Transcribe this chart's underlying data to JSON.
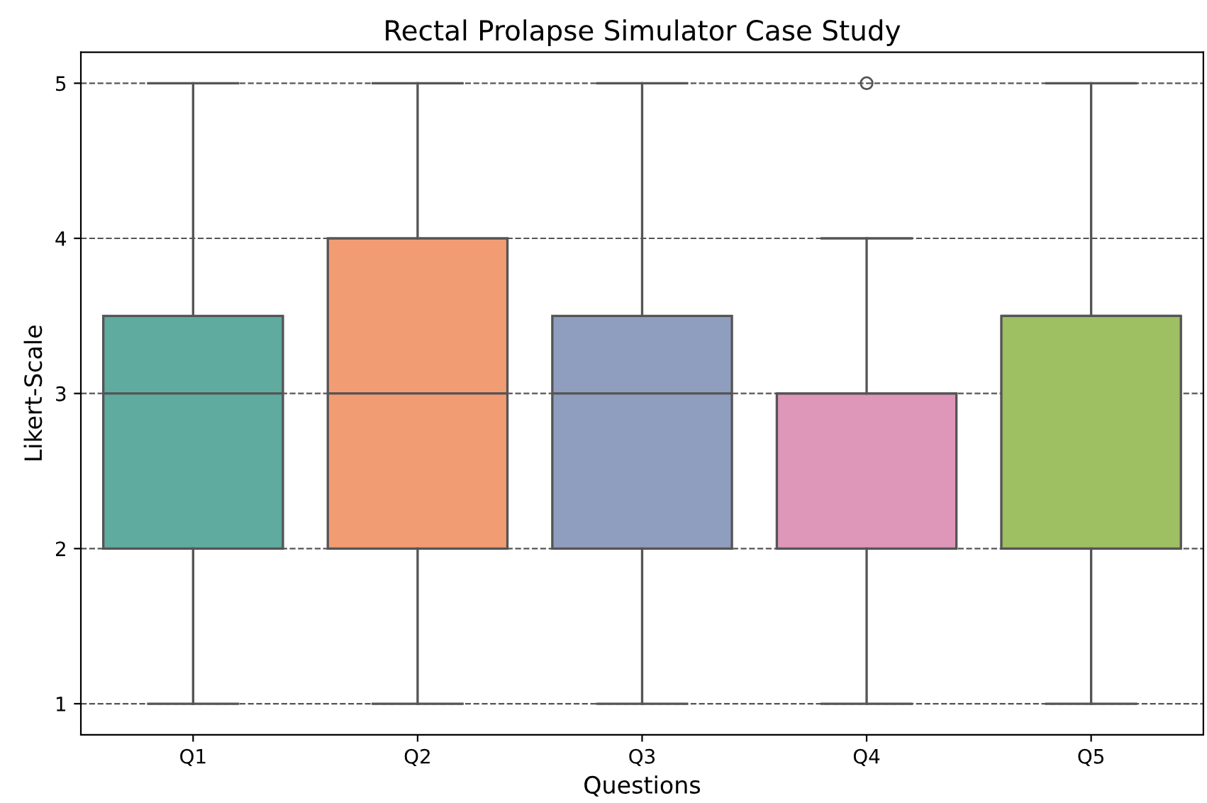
{
  "chart_data": {
    "type": "box",
    "title": "Rectal Prolapse Simulator Case Study",
    "xlabel": "Questions",
    "ylabel": "Likert-Scale",
    "categories": [
      "Q1",
      "Q2",
      "Q3",
      "Q4",
      "Q5"
    ],
    "colors": [
      "#5fab9f",
      "#f29c74",
      "#8f9ebf",
      "#de97b8",
      "#9fbf63"
    ],
    "boxes": [
      {
        "low": 1,
        "q1": 2,
        "median": 3,
        "q3": 3.5,
        "high": 5
      },
      {
        "low": 1,
        "q1": 2,
        "median": 3,
        "q3": 4,
        "high": 5
      },
      {
        "low": 1,
        "q1": 2,
        "median": 3,
        "q3": 3.5,
        "high": 5
      },
      {
        "low": 1,
        "q1": 2,
        "median": 3,
        "q3": 3,
        "high": 4,
        "outliers": [
          5
        ]
      },
      {
        "low": 1,
        "q1": 2,
        "median": 3.5,
        "q3": 3.5,
        "high": 5
      }
    ],
    "ylim": [
      0.8,
      5.2
    ],
    "yticks": [
      1,
      2,
      3,
      4,
      5
    ],
    "grid": "y"
  }
}
